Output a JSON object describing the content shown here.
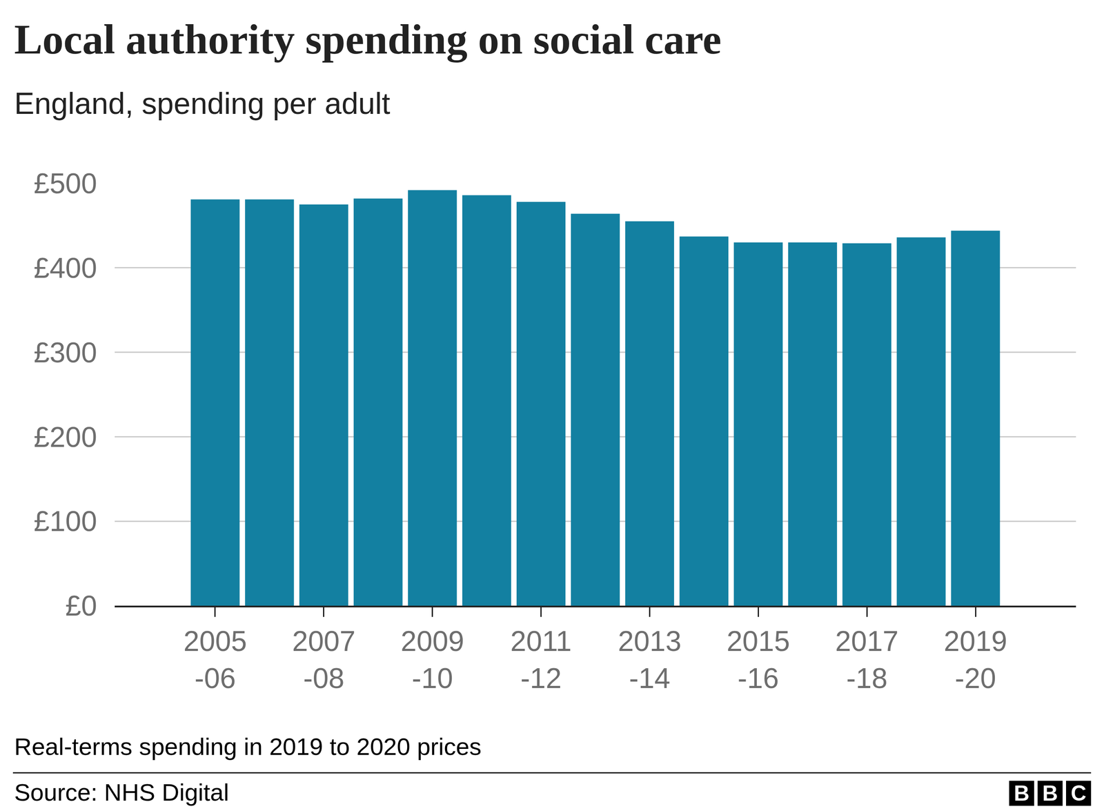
{
  "chart_data": {
    "type": "bar",
    "title": "Local authority spending on social care",
    "subtitle": "England, spending per adult",
    "note": "Real-terms spending in 2019 to 2020 prices",
    "source": "Source: NHS Digital",
    "logo": "BBC",
    "categories": [
      "2005-06",
      null,
      "2007-08",
      null,
      "2009-10",
      null,
      "2011-12",
      null,
      "2013-14",
      null,
      "2015-16",
      null,
      "2017-18",
      null,
      "2019-20"
    ],
    "values": [
      481,
      481,
      475,
      482,
      492,
      486,
      478,
      464,
      455,
      437,
      430,
      430,
      429,
      436,
      444
    ],
    "color": "#1380a1",
    "ylim": [
      0,
      500
    ],
    "yticks": [
      {
        "value": 0,
        "label": "£0"
      },
      {
        "value": 100,
        "label": "£100"
      },
      {
        "value": 200,
        "label": "£200"
      },
      {
        "value": 300,
        "label": "£300"
      },
      {
        "value": 400,
        "label": "£400"
      },
      {
        "value": 500,
        "label": "£500"
      }
    ],
    "grid": true
  }
}
